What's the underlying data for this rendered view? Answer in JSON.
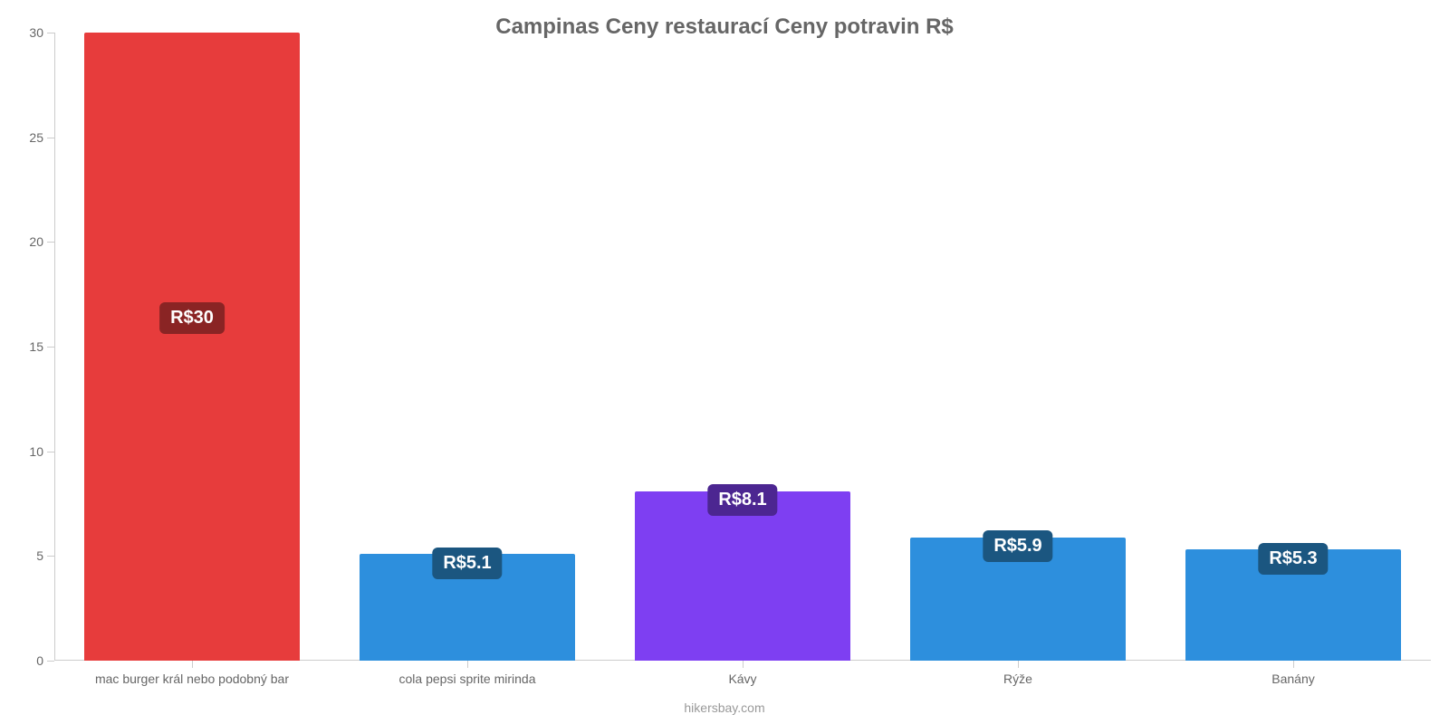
{
  "chart": {
    "type": "bar",
    "title": "Campinas Ceny restaurací Ceny potravin R$",
    "title_color": "#666666",
    "title_fontsize": 24,
    "background_color": "#ffffff",
    "axis_color": "#cccccc",
    "tick_label_color": "#666666",
    "tick_label_fontsize": 14,
    "ylim": [
      0,
      30
    ],
    "yticks": [
      0,
      5,
      10,
      15,
      20,
      25,
      30
    ],
    "bar_width_ratio": 0.78,
    "categories": [
      "mac burger král nebo podobný bar",
      "cola pepsi sprite mirinda",
      "Kávy",
      "Rýže",
      "Banány"
    ],
    "values": [
      30,
      5.1,
      8.1,
      5.9,
      5.3
    ],
    "value_labels": [
      "R$30",
      "R$5.1",
      "R$8.1",
      "R$5.9",
      "R$5.3"
    ],
    "bar_colors": [
      "#e73c3c",
      "#2d8fdd",
      "#7e3ff2",
      "#2d8fdd",
      "#2d8fdd"
    ],
    "badge_bg_colors": [
      "#8a2424",
      "#1b5680",
      "#4c2691",
      "#1b5680",
      "#1b5680"
    ],
    "badge_font_color": "#ffffff",
    "badge_fontsize": 20,
    "source_text": "hikersbay.com",
    "source_color": "#999999"
  }
}
